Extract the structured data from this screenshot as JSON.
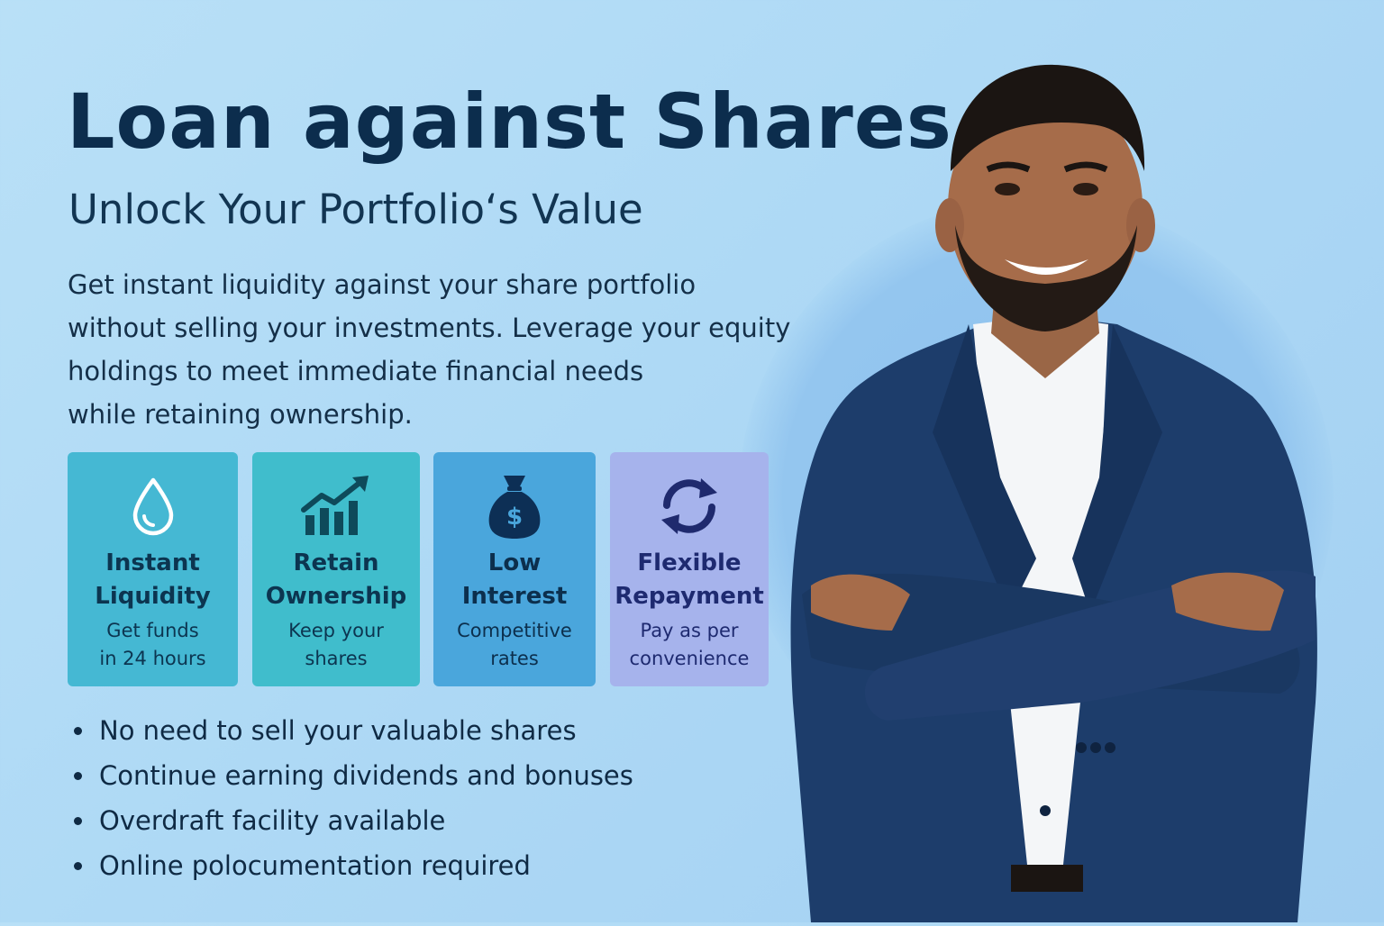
{
  "title": "Loan against Shares",
  "subtitle": "Unlock Your Portfolio‘s Value",
  "description_lines": [
    "Get instant liquidity against your share portfolio",
    "without selling your investments. Leverage your equity",
    "holdings to meet immediate financial needs",
    "while retaining ownership."
  ],
  "features": [
    {
      "icon": "water-drop-icon",
      "title_lines": [
        "Instant",
        "Liquidity"
      ],
      "sub_lines": [
        "Get funds",
        "in 24 hours"
      ],
      "color": "#45b8d3"
    },
    {
      "icon": "growth-chart-icon",
      "title_lines": [
        "Retain",
        "Ownership"
      ],
      "sub_lines": [
        "Keep your",
        "shares"
      ],
      "color": "#40bdcc"
    },
    {
      "icon": "money-bag-icon",
      "title_lines": [
        "Low",
        "Interest"
      ],
      "sub_lines": [
        "Competitive",
        "rates"
      ],
      "color": "#4aa6dc"
    },
    {
      "icon": "refresh-cycle-icon",
      "title_lines": [
        "Flexible",
        "Repayment"
      ],
      "sub_lines": [
        "Pay as per",
        "convenience"
      ],
      "color": "#a6b3ec"
    }
  ],
  "bullets": [
    "No need to sell your valuable shares",
    "Continue earning dividends and bonuses",
    "Overdraft facility available",
    "Online polocumentation required"
  ],
  "colors": {
    "background": "#aed9f5",
    "heading": "#0c2d4d",
    "suit": "#1d3d6b"
  }
}
